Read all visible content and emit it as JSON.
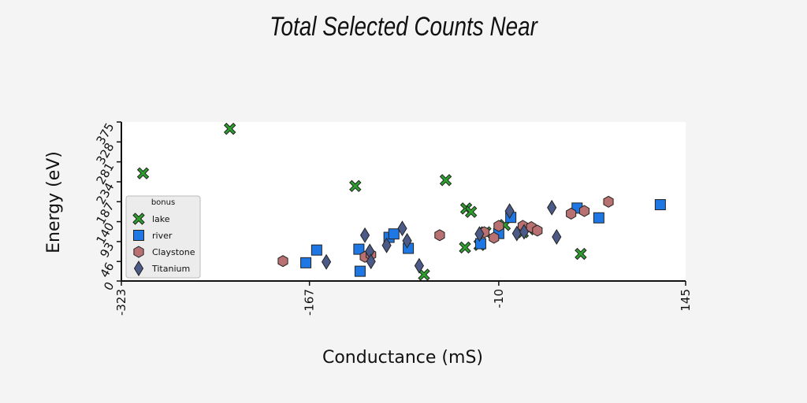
{
  "chart_data": {
    "type": "scatter",
    "title": "Total Selected Counts Near",
    "xlabel": "Conductance (mS)",
    "ylabel": "Energy (eV)",
    "xlim": [
      -323,
      145
    ],
    "ylim": [
      0,
      375
    ],
    "xticks": [
      "-323",
      "-167",
      "-10",
      "145"
    ],
    "xtick_values": [
      -323,
      -167,
      -10,
      145
    ],
    "yticks": [
      "0",
      "46",
      "93",
      "140",
      "187",
      "234",
      "281",
      "328",
      "375"
    ],
    "ytick_values": [
      0,
      46,
      93,
      140,
      187,
      234,
      281,
      328,
      375
    ],
    "grid": false,
    "legend": {
      "title": "bonus",
      "position": "lower-left"
    },
    "series": [
      {
        "name": "lake",
        "marker": "x-cross",
        "color": "#2ca02c",
        "points": [
          [
            -305,
            254
          ],
          [
            -233,
            359
          ],
          [
            -129,
            224
          ],
          [
            -54,
            238
          ],
          [
            -72,
            15
          ],
          [
            -37,
            171
          ],
          [
            -33,
            163
          ],
          [
            -38,
            79
          ],
          [
            -26,
            85
          ],
          [
            -21,
            115
          ],
          [
            -5,
            132
          ],
          [
            10,
            115
          ],
          [
            15,
            122
          ],
          [
            58,
            64
          ]
        ]
      },
      {
        "name": "river",
        "marker": "square",
        "color": "#1f77e4",
        "points": [
          [
            -170,
            43
          ],
          [
            -161,
            73
          ],
          [
            -126,
            75
          ],
          [
            -125,
            23
          ],
          [
            -101,
            103
          ],
          [
            -97,
            111
          ],
          [
            -85,
            77
          ],
          [
            -25,
            88
          ],
          [
            -10,
            112
          ],
          [
            0,
            150
          ],
          [
            55,
            172
          ],
          [
            73,
            149
          ],
          [
            124,
            180
          ]
        ]
      },
      {
        "name": "Claystone",
        "marker": "hexagon",
        "color": "#b87070",
        "points": [
          [
            -189,
            47
          ],
          [
            -121,
            57
          ],
          [
            -116,
            62
          ],
          [
            -59,
            108
          ],
          [
            -22,
            115
          ],
          [
            -14,
            102
          ],
          [
            -10,
            130
          ],
          [
            10,
            130
          ],
          [
            17,
            127
          ],
          [
            22,
            119
          ],
          [
            50,
            159
          ],
          [
            61,
            165
          ],
          [
            81,
            187
          ]
        ]
      },
      {
        "name": "Titanium",
        "marker": "diamond",
        "color": "#4c5a88",
        "points": [
          [
            -153,
            45
          ],
          [
            -121,
            108
          ],
          [
            -117,
            70
          ],
          [
            -116,
            46
          ],
          [
            -103,
            84
          ],
          [
            -90,
            124
          ],
          [
            -86,
            95
          ],
          [
            -76,
            36
          ],
          [
            -26,
            111
          ],
          [
            -1,
            165
          ],
          [
            5,
            112
          ],
          [
            11,
            116
          ],
          [
            34,
            173
          ],
          [
            38,
            104
          ]
        ]
      }
    ]
  }
}
